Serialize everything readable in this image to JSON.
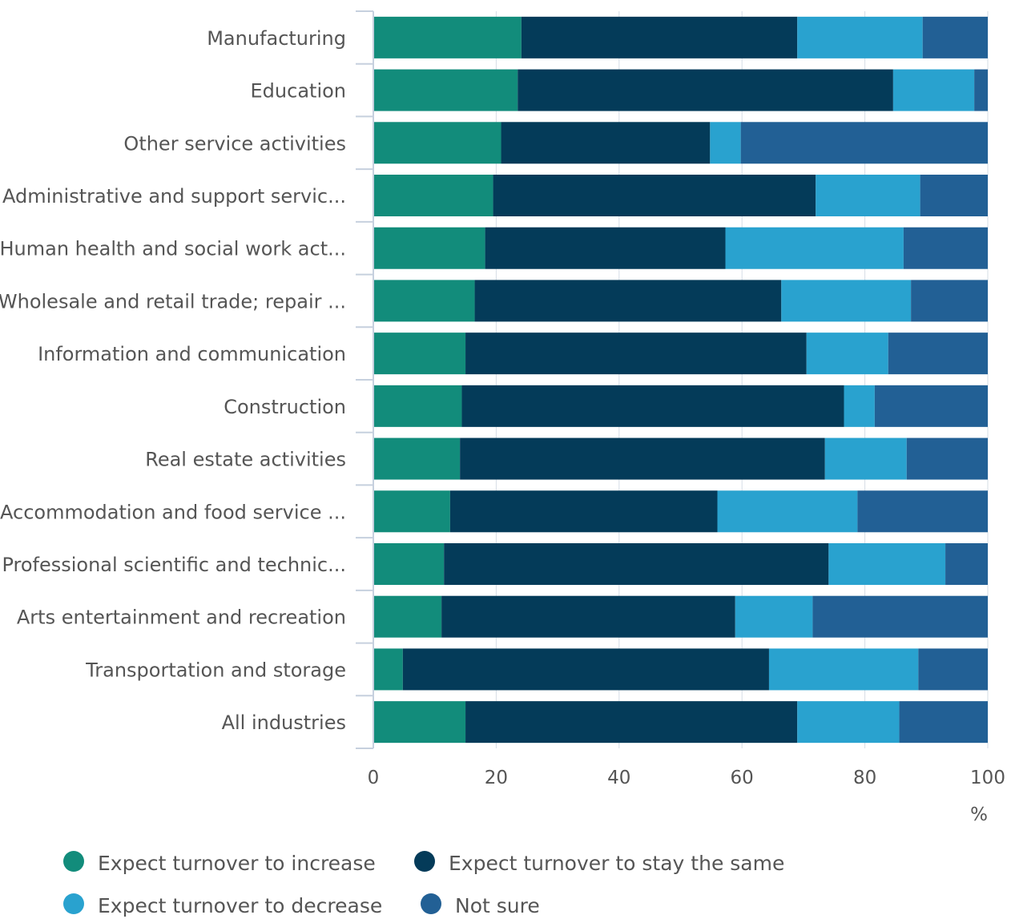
{
  "chart_data": {
    "type": "bar",
    "orientation": "horizontal",
    "stacked": true,
    "categories": [
      "Manufacturing",
      "Education",
      "Other service activities",
      "Administrative and support servic...",
      "Human health and social work act...",
      "Wholesale and retail trade; repair ...",
      "Information and communication",
      "Construction",
      "Real estate activities",
      "Accommodation and food service ...",
      "Professional scientific and technic...",
      "Arts entertainment and recreation",
      "Transportation and storage",
      "All industries"
    ],
    "series": [
      {
        "name": "Expect turnover to increase",
        "color": "#128c7b",
        "values": [
          24.1,
          23.5,
          20.8,
          19.5,
          18.2,
          16.5,
          15.0,
          14.4,
          14.1,
          12.5,
          11.5,
          11.1,
          4.8,
          15.0
        ]
      },
      {
        "name": "Expect turnover to stay the same",
        "color": "#043b59",
        "values": [
          44.9,
          61.1,
          34.0,
          52.5,
          39.1,
          49.9,
          55.5,
          62.2,
          59.4,
          43.5,
          62.6,
          47.8,
          59.6,
          54.0
        ]
      },
      {
        "name": "Expect turnover to decrease",
        "color": "#29a2cf",
        "values": [
          20.4,
          13.2,
          5.0,
          17.0,
          29.0,
          21.1,
          13.3,
          5.0,
          13.3,
          22.8,
          19.0,
          12.6,
          24.3,
          16.6
        ]
      },
      {
        "name": "Not sure",
        "color": "#226095",
        "values": [
          10.6,
          2.2,
          40.2,
          11.0,
          13.7,
          12.5,
          16.2,
          18.4,
          13.2,
          21.2,
          6.9,
          28.5,
          11.3,
          14.4
        ]
      }
    ],
    "xlim": [
      0,
      100
    ],
    "xticks": [
      0,
      20,
      40,
      60,
      80,
      100
    ],
    "xunit": "%",
    "grid": true,
    "legend_position": "bottom"
  }
}
